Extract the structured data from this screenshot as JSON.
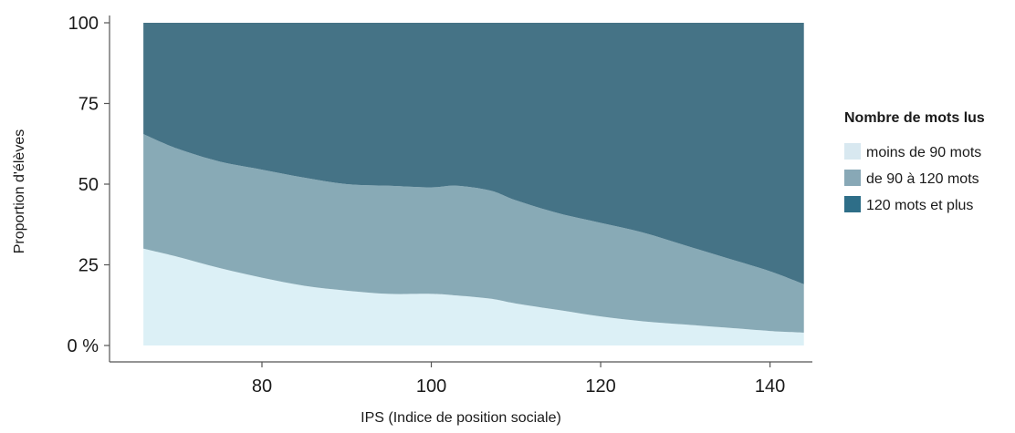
{
  "chart_data": {
    "type": "area",
    "stacked": true,
    "title": "",
    "xlabel": "IPS (Indice de position sociale)",
    "ylabel": "Proportion d'élèves",
    "xlim": [
      62,
      145
    ],
    "ylim": [
      0,
      100
    ],
    "x_ticks": [
      80,
      100,
      120,
      140
    ],
    "x_tick_labels": [
      "80",
      "100",
      "120",
      "140"
    ],
    "y_ticks": [
      0,
      25,
      50,
      75,
      100
    ],
    "y_tick_labels": [
      "0 %",
      "25",
      "50",
      "75",
      "100"
    ],
    "grid": false,
    "legend": {
      "title": "Nombre de mots lus",
      "position": "right",
      "entries": [
        "moins de 90 mots",
        "de 90 à 120 mots",
        "120 mots et plus"
      ]
    },
    "x": [
      66,
      70,
      75,
      80,
      85,
      90,
      95,
      100,
      103,
      107,
      110,
      115,
      120,
      125,
      130,
      135,
      140,
      144
    ],
    "series": [
      {
        "name": "moins de 90 mots",
        "color": "#dcf0f6",
        "legend_color": "#d8e8f0",
        "values": [
          30,
          27.5,
          24,
          21,
          18.5,
          17,
          16,
          16,
          15.5,
          14.5,
          13,
          11,
          9,
          7.5,
          6.5,
          5.5,
          4.5,
          4
        ]
      },
      {
        "name": "de 90 à 120 mots",
        "color": "#88aab6",
        "legend_color": "#88a8b6",
        "values": [
          35.5,
          33.5,
          33,
          33.5,
          33.5,
          33,
          33.5,
          33,
          34,
          33.5,
          32,
          30,
          29,
          27.5,
          24.5,
          21.5,
          18.5,
          15
        ]
      },
      {
        "name": "120 mots et plus",
        "color": "#457386",
        "legend_color": "#2e6e88",
        "values": [
          34.5,
          39,
          43,
          45.5,
          48,
          50,
          50.5,
          51,
          50.5,
          52,
          55,
          59,
          62,
          65,
          69,
          73,
          77,
          81
        ]
      }
    ]
  }
}
